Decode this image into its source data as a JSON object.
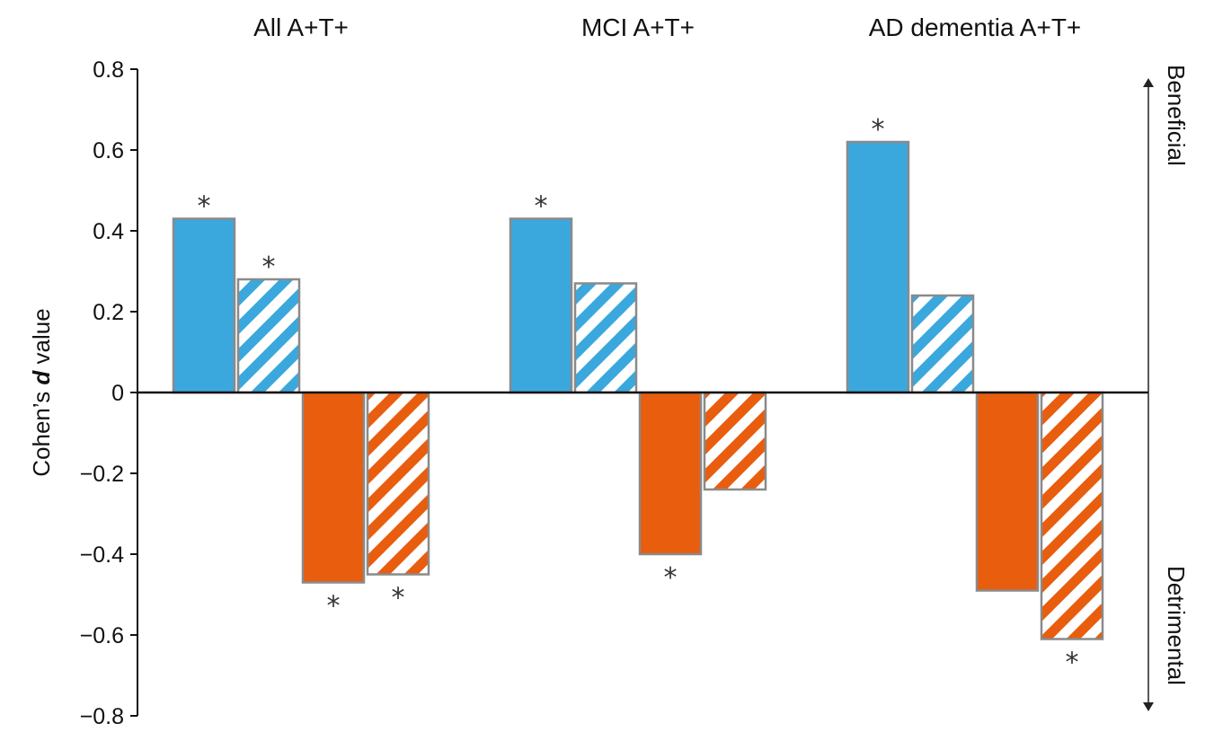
{
  "chart_data": {
    "type": "bar",
    "title": "",
    "ylabel": "Cohen's d value",
    "ylabel_parts": [
      "Cohen’s ",
      "d",
      " value"
    ],
    "ylim": [
      -0.8,
      0.8
    ],
    "yticks": [
      0.8,
      0.6,
      0.4,
      0.2,
      0,
      -0.2,
      -0.4,
      -0.6,
      -0.8
    ],
    "ytick_labels": [
      "0.8",
      "0.6",
      "0.4",
      "0.2",
      "0",
      "−0.2",
      "−0.4",
      "−0.6",
      "−0.8"
    ],
    "grid": false,
    "legend": "none",
    "groups": [
      {
        "label": "All A+T+",
        "bars": [
          {
            "value": 0.43,
            "color": "#3aa8dd",
            "hatched": false,
            "significant": true
          },
          {
            "value": 0.28,
            "color": "#3aa8dd",
            "hatched": true,
            "significant": true
          },
          {
            "value": -0.47,
            "color": "#e85d0e",
            "hatched": false,
            "significant": true
          },
          {
            "value": -0.45,
            "color": "#e85d0e",
            "hatched": true,
            "significant": true
          }
        ]
      },
      {
        "label": "MCI A+T+",
        "bars": [
          {
            "value": 0.43,
            "color": "#3aa8dd",
            "hatched": false,
            "significant": true
          },
          {
            "value": 0.27,
            "color": "#3aa8dd",
            "hatched": true,
            "significant": false
          },
          {
            "value": -0.4,
            "color": "#e85d0e",
            "hatched": false,
            "significant": true
          },
          {
            "value": -0.24,
            "color": "#e85d0e",
            "hatched": true,
            "significant": false
          }
        ]
      },
      {
        "label": "AD dementia A+T+",
        "bars": [
          {
            "value": 0.62,
            "color": "#3aa8dd",
            "hatched": false,
            "significant": true
          },
          {
            "value": 0.24,
            "color": "#3aa8dd",
            "hatched": true,
            "significant": false
          },
          {
            "value": -0.49,
            "color": "#e85d0e",
            "hatched": false,
            "significant": false
          },
          {
            "value": -0.61,
            "color": "#e85d0e",
            "hatched": true,
            "significant": true
          }
        ]
      }
    ],
    "significance_marker": "*",
    "side_labels": {
      "top": "Beneficial",
      "bottom": "Detrimental"
    }
  }
}
